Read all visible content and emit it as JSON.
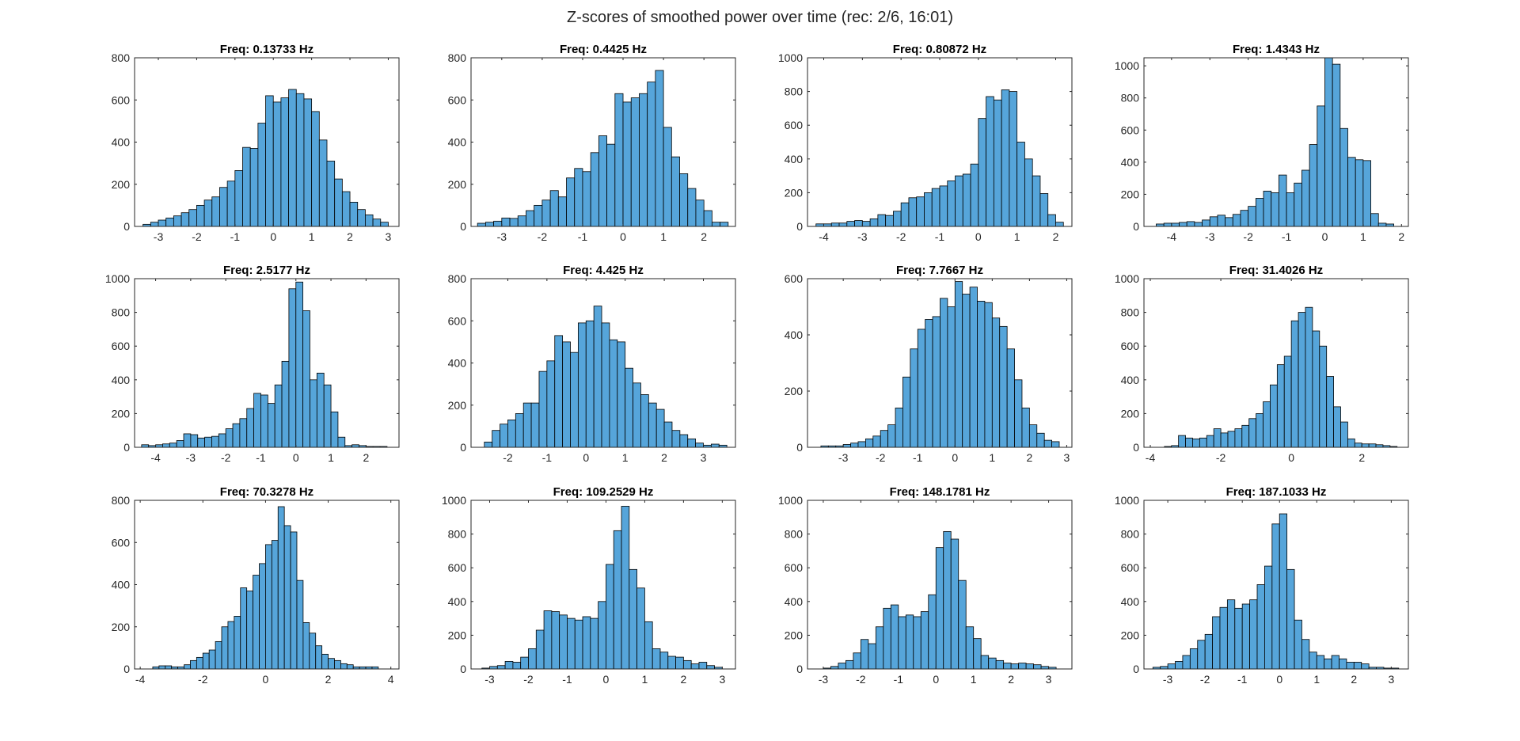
{
  "figure": {
    "suptitle": "Z-scores of smoothed power over time (rec: 2/6, 16:01)"
  },
  "colors": {
    "bar_fill": "#56A5DA",
    "bar_edge": "#000000",
    "axis": "#262626",
    "background": "#FFFFFF"
  },
  "chart_data": [
    {
      "type": "bar",
      "title": "Freq: 0.13733 Hz",
      "xlim": [
        -3.62,
        3.28
      ],
      "ylim": [
        0,
        800
      ],
      "xticks": [
        -3,
        -2,
        -1,
        0,
        1,
        2,
        3
      ],
      "yticks": [
        0,
        200,
        400,
        600,
        800
      ],
      "bin_edges": [
        -3.4,
        -3.2,
        -3.0,
        -2.8,
        -2.6,
        -2.4,
        -2.2,
        -2.0,
        -1.8,
        -1.6,
        -1.4,
        -1.2,
        -1.0,
        -0.8,
        -0.6,
        -0.4,
        -0.2,
        0.0,
        0.2,
        0.4,
        0.6,
        0.8,
        1.0,
        1.2,
        1.4,
        1.6,
        1.8,
        2.0,
        2.2,
        2.4,
        2.6,
        2.8,
        3.0
      ],
      "values": [
        10,
        20,
        30,
        40,
        50,
        65,
        80,
        100,
        125,
        140,
        185,
        215,
        265,
        375,
        370,
        490,
        620,
        590,
        610,
        650,
        630,
        605,
        545,
        410,
        310,
        225,
        165,
        115,
        80,
        55,
        35,
        20
      ]
    },
    {
      "type": "bar",
      "title": "Freq: 0.4425 Hz",
      "xlim": [
        -3.76,
        2.78
      ],
      "ylim": [
        0,
        800
      ],
      "xticks": [
        -3,
        -2,
        -1,
        0,
        1,
        2
      ],
      "yticks": [
        0,
        200,
        400,
        600,
        800
      ],
      "bin_edges": [
        -3.6,
        -3.4,
        -3.2,
        -3.0,
        -2.8,
        -2.6,
        -2.4,
        -2.2,
        -2.0,
        -1.8,
        -1.6,
        -1.4,
        -1.2,
        -1.0,
        -0.8,
        -0.6,
        -0.4,
        -0.2,
        0.0,
        0.2,
        0.4,
        0.6,
        0.8,
        1.0,
        1.2,
        1.4,
        1.6,
        1.8,
        2.0,
        2.2,
        2.4,
        2.6
      ],
      "values": [
        15,
        20,
        25,
        40,
        38,
        50,
        75,
        100,
        125,
        170,
        140,
        230,
        275,
        260,
        350,
        430,
        390,
        630,
        590,
        610,
        630,
        685,
        740,
        470,
        330,
        250,
        180,
        125,
        75,
        20,
        20
      ]
    },
    {
      "type": "bar",
      "title": "Freq: 0.80872 Hz",
      "xlim": [
        -4.42,
        2.42
      ],
      "ylim": [
        0,
        1000
      ],
      "xticks": [
        -4,
        -3,
        -2,
        -1,
        0,
        1,
        2
      ],
      "yticks": [
        0,
        200,
        400,
        600,
        800,
        1000
      ],
      "bin_edges": [
        -4.2,
        -4.0,
        -3.8,
        -3.6,
        -3.4,
        -3.2,
        -3.0,
        -2.8,
        -2.6,
        -2.4,
        -2.2,
        -2.0,
        -1.8,
        -1.6,
        -1.4,
        -1.2,
        -1.0,
        -0.8,
        -0.6,
        -0.4,
        -0.2,
        0.0,
        0.2,
        0.4,
        0.6,
        0.8,
        1.0,
        1.2,
        1.4,
        1.6,
        1.8,
        2.0,
        2.2
      ],
      "values": [
        15,
        15,
        20,
        20,
        30,
        35,
        30,
        45,
        70,
        65,
        90,
        140,
        170,
        175,
        200,
        225,
        240,
        270,
        300,
        310,
        370,
        640,
        770,
        750,
        810,
        800,
        500,
        400,
        300,
        195,
        70,
        25
      ]
    },
    {
      "type": "bar",
      "title": "Freq: 1.4343 Hz",
      "xlim": [
        -4.72,
        2.18
      ],
      "ylim": [
        0,
        1050
      ],
      "xticks": [
        -4,
        -3,
        -2,
        -1,
        0,
        1,
        2
      ],
      "yticks": [
        0,
        200,
        400,
        600,
        800,
        1000
      ],
      "bin_edges": [
        -4.4,
        -4.2,
        -4.0,
        -3.8,
        -3.6,
        -3.4,
        -3.2,
        -3.0,
        -2.8,
        -2.6,
        -2.4,
        -2.2,
        -2.0,
        -1.8,
        -1.6,
        -1.4,
        -1.2,
        -1.0,
        -0.8,
        -0.6,
        -0.4,
        -0.2,
        0.0,
        0.2,
        0.4,
        0.6,
        0.8,
        1.0,
        1.2,
        1.4,
        1.6,
        1.8
      ],
      "values": [
        15,
        20,
        20,
        25,
        30,
        25,
        40,
        60,
        70,
        55,
        75,
        100,
        125,
        175,
        220,
        210,
        320,
        210,
        270,
        350,
        510,
        750,
        1060,
        1010,
        610,
        430,
        415,
        410,
        80,
        20,
        15
      ]
    },
    {
      "type": "bar",
      "title": "Freq: 2.5177 Hz",
      "xlim": [
        -4.6,
        2.94
      ],
      "ylim": [
        0,
        1000
      ],
      "xticks": [
        -4,
        -3,
        -2,
        -1,
        0,
        1,
        2
      ],
      "yticks": [
        0,
        200,
        400,
        600,
        800,
        1000
      ],
      "bin_edges": [
        -4.4,
        -4.2,
        -4.0,
        -3.8,
        -3.6,
        -3.4,
        -3.2,
        -3.0,
        -2.8,
        -2.6,
        -2.4,
        -2.2,
        -2.0,
        -1.8,
        -1.6,
        -1.4,
        -1.2,
        -1.0,
        -0.8,
        -0.6,
        -0.4,
        -0.2,
        0.0,
        0.2,
        0.4,
        0.6,
        0.8,
        1.0,
        1.2,
        1.4,
        1.6,
        1.8,
        2.0,
        2.2,
        2.4,
        2.6
      ],
      "values": [
        15,
        10,
        15,
        20,
        25,
        40,
        80,
        75,
        55,
        60,
        65,
        80,
        110,
        140,
        170,
        230,
        320,
        310,
        260,
        370,
        510,
        940,
        980,
        810,
        400,
        440,
        370,
        210,
        60,
        10,
        15,
        10,
        5,
        5,
        5
      ]
    },
    {
      "type": "bar",
      "title": "Freq: 4.425 Hz",
      "xlim": [
        -2.94,
        3.82
      ],
      "ylim": [
        0,
        800
      ],
      "xticks": [
        -2,
        -1,
        0,
        1,
        2,
        3
      ],
      "yticks": [
        0,
        200,
        400,
        600,
        800
      ],
      "bin_edges": [
        -2.6,
        -2.4,
        -2.2,
        -2.0,
        -1.8,
        -1.6,
        -1.4,
        -1.2,
        -1.0,
        -0.8,
        -0.6,
        -0.4,
        -0.2,
        0.0,
        0.2,
        0.4,
        0.6,
        0.8,
        1.0,
        1.2,
        1.4,
        1.6,
        1.8,
        2.0,
        2.2,
        2.4,
        2.6,
        2.8,
        3.0,
        3.2,
        3.4,
        3.6
      ],
      "values": [
        25,
        80,
        110,
        130,
        160,
        210,
        210,
        360,
        410,
        530,
        500,
        450,
        590,
        600,
        670,
        590,
        510,
        500,
        375,
        305,
        250,
        210,
        180,
        120,
        80,
        60,
        40,
        20,
        10,
        15,
        10
      ]
    },
    {
      "type": "bar",
      "title": "Freq: 7.7667 Hz",
      "xlim": [
        -3.96,
        3.14
      ],
      "ylim": [
        0,
        600
      ],
      "xticks": [
        -3,
        -2,
        -1,
        0,
        1,
        2,
        3
      ],
      "yticks": [
        0,
        200,
        400,
        600
      ],
      "bin_edges": [
        -3.6,
        -3.4,
        -3.2,
        -3.0,
        -2.8,
        -2.6,
        -2.4,
        -2.2,
        -2.0,
        -1.8,
        -1.6,
        -1.4,
        -1.2,
        -1.0,
        -0.8,
        -0.6,
        -0.4,
        -0.2,
        0.0,
        0.2,
        0.4,
        0.6,
        0.8,
        1.0,
        1.2,
        1.4,
        1.6,
        1.8,
        2.0,
        2.2,
        2.4,
        2.6,
        2.8
      ],
      "values": [
        5,
        5,
        5,
        10,
        15,
        20,
        30,
        40,
        60,
        80,
        140,
        250,
        350,
        420,
        455,
        465,
        530,
        500,
        590,
        545,
        570,
        520,
        515,
        460,
        430,
        350,
        240,
        140,
        80,
        50,
        25,
        20
      ]
    },
    {
      "type": "bar",
      "title": "Freq: 31.4026 Hz",
      "xlim": [
        -4.18,
        3.32
      ],
      "ylim": [
        0,
        1000
      ],
      "xticks": [
        -4,
        -2,
        0,
        2
      ],
      "yticks": [
        0,
        200,
        400,
        600,
        800,
        1000
      ],
      "bin_edges": [
        -3.6,
        -3.4,
        -3.2,
        -3.0,
        -2.8,
        -2.6,
        -2.4,
        -2.2,
        -2.0,
        -1.8,
        -1.6,
        -1.4,
        -1.2,
        -1.0,
        -0.8,
        -0.6,
        -0.4,
        -0.2,
        0.0,
        0.2,
        0.4,
        0.6,
        0.8,
        1.0,
        1.2,
        1.4,
        1.6,
        1.8,
        2.0,
        2.2,
        2.4,
        2.6,
        2.8,
        3.0
      ],
      "values": [
        5,
        10,
        70,
        55,
        50,
        55,
        70,
        110,
        85,
        95,
        110,
        130,
        170,
        200,
        270,
        370,
        490,
        540,
        750,
        800,
        830,
        690,
        600,
        420,
        240,
        150,
        50,
        25,
        20,
        20,
        15,
        10,
        5
      ]
    },
    {
      "type": "bar",
      "title": "Freq: 70.3278 Hz",
      "xlim": [
        -4.18,
        4.26
      ],
      "ylim": [
        0,
        800
      ],
      "xticks": [
        -4,
        -2,
        0,
        2,
        4
      ],
      "yticks": [
        0,
        200,
        400,
        600,
        800
      ],
      "bin_edges": [
        -3.6,
        -3.4,
        -3.2,
        -3.0,
        -2.8,
        -2.6,
        -2.4,
        -2.2,
        -2.0,
        -1.8,
        -1.6,
        -1.4,
        -1.2,
        -1.0,
        -0.8,
        -0.6,
        -0.4,
        -0.2,
        0.0,
        0.2,
        0.4,
        0.6,
        0.8,
        1.0,
        1.2,
        1.4,
        1.6,
        1.8,
        2.0,
        2.2,
        2.4,
        2.6,
        2.8,
        3.0,
        3.2,
        3.4,
        3.6
      ],
      "values": [
        10,
        15,
        15,
        10,
        10,
        20,
        40,
        55,
        75,
        90,
        130,
        200,
        225,
        250,
        385,
        370,
        445,
        500,
        590,
        610,
        770,
        680,
        650,
        420,
        220,
        170,
        110,
        70,
        50,
        40,
        25,
        20,
        10,
        10,
        10,
        10
      ]
    },
    {
      "type": "bar",
      "title": "Freq: 109.2529 Hz",
      "xlim": [
        -3.48,
        3.34
      ],
      "ylim": [
        0,
        1000
      ],
      "xticks": [
        -3,
        -2,
        -1,
        0,
        1,
        2,
        3
      ],
      "yticks": [
        0,
        200,
        400,
        600,
        800,
        1000
      ],
      "bin_edges": [
        -3.2,
        -3.0,
        -2.8,
        -2.6,
        -2.4,
        -2.2,
        -2.0,
        -1.8,
        -1.6,
        -1.4,
        -1.2,
        -1.0,
        -0.8,
        -0.6,
        -0.4,
        -0.2,
        0.0,
        0.2,
        0.4,
        0.6,
        0.8,
        1.0,
        1.2,
        1.4,
        1.6,
        1.8,
        2.0,
        2.2,
        2.4,
        2.6,
        2.8,
        3.0
      ],
      "values": [
        5,
        15,
        20,
        45,
        40,
        70,
        120,
        230,
        345,
        340,
        320,
        300,
        290,
        310,
        300,
        400,
        620,
        820,
        965,
        590,
        480,
        280,
        120,
        100,
        75,
        70,
        50,
        30,
        40,
        20,
        10
      ]
    },
    {
      "type": "bar",
      "title": "Freq: 148.1781 Hz",
      "xlim": [
        -3.42,
        3.62
      ],
      "ylim": [
        0,
        1000
      ],
      "xticks": [
        -3,
        -2,
        -1,
        0,
        1,
        2,
        3
      ],
      "yticks": [
        0,
        200,
        400,
        600,
        800,
        1000
      ],
      "bin_edges": [
        -3.0,
        -2.8,
        -2.6,
        -2.4,
        -2.2,
        -2.0,
        -1.8,
        -1.6,
        -1.4,
        -1.2,
        -1.0,
        -0.8,
        -0.6,
        -0.4,
        -0.2,
        0.0,
        0.2,
        0.4,
        0.6,
        0.8,
        1.0,
        1.2,
        1.4,
        1.6,
        1.8,
        2.0,
        2.2,
        2.4,
        2.6,
        2.8,
        3.0,
        3.2
      ],
      "values": [
        5,
        15,
        35,
        50,
        95,
        175,
        150,
        250,
        360,
        380,
        310,
        320,
        310,
        340,
        440,
        720,
        815,
        770,
        525,
        250,
        180,
        80,
        65,
        50,
        35,
        30,
        35,
        30,
        25,
        15,
        10
      ]
    },
    {
      "type": "bar",
      "title": "Freq: 187.1033 Hz",
      "xlim": [
        -3.64,
        3.46
      ],
      "ylim": [
        0,
        1000
      ],
      "xticks": [
        -3,
        -2,
        -1,
        0,
        1,
        2,
        3
      ],
      "yticks": [
        0,
        200,
        400,
        600,
        800,
        1000
      ],
      "bin_edges": [
        -3.4,
        -3.2,
        -3.0,
        -2.8,
        -2.6,
        -2.4,
        -2.2,
        -2.0,
        -1.8,
        -1.6,
        -1.4,
        -1.2,
        -1.0,
        -0.8,
        -0.6,
        -0.4,
        -0.2,
        0.0,
        0.2,
        0.4,
        0.6,
        0.8,
        1.0,
        1.2,
        1.4,
        1.6,
        1.8,
        2.0,
        2.2,
        2.4,
        2.6,
        2.8,
        3.0,
        3.2
      ],
      "values": [
        10,
        15,
        30,
        45,
        80,
        120,
        170,
        205,
        310,
        365,
        410,
        360,
        385,
        410,
        500,
        610,
        860,
        920,
        590,
        290,
        175,
        100,
        80,
        60,
        80,
        60,
        40,
        40,
        30,
        10,
        10,
        5,
        5
      ]
    }
  ]
}
